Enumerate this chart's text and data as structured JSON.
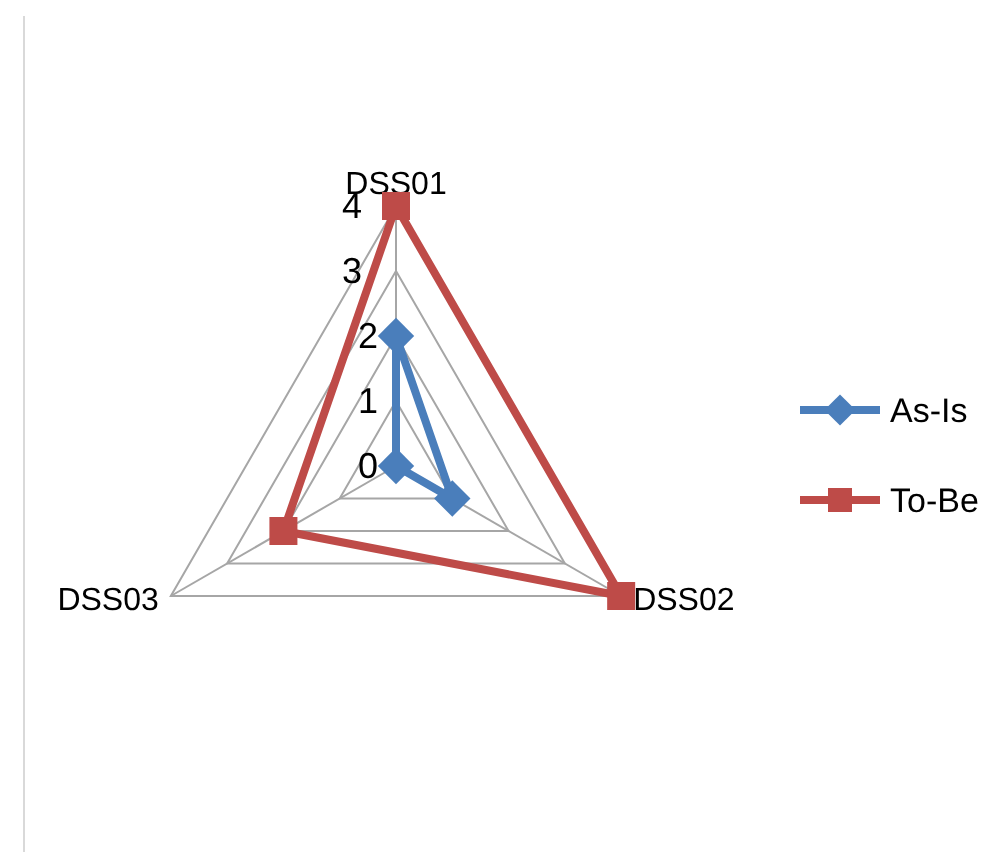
{
  "chart_data": {
    "type": "radar",
    "categories": [
      "DSS01",
      "DSS02",
      "DSS03"
    ],
    "ylim": [
      0,
      4
    ],
    "yticks": [
      0,
      1,
      2,
      3,
      4
    ],
    "grid": true,
    "legend": "right",
    "series": [
      {
        "name": "As-Is",
        "color": "#4a7ebb",
        "marker": "diamond",
        "values": [
          2,
          1,
          0
        ]
      },
      {
        "name": "To-Be",
        "color": "#be4b48",
        "marker": "square",
        "values": [
          4,
          4,
          2
        ]
      }
    ]
  }
}
